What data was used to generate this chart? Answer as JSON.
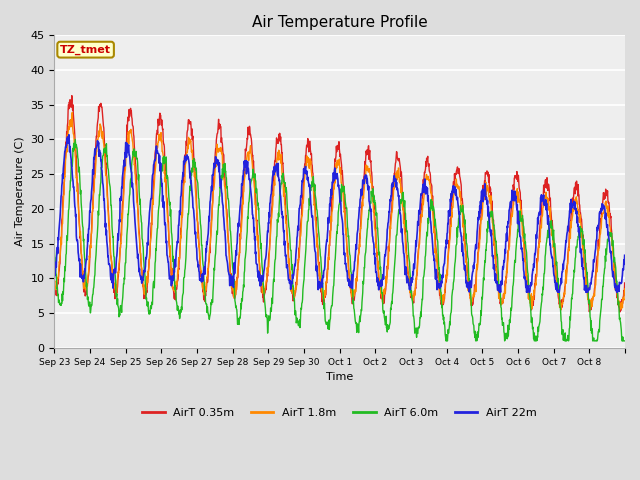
{
  "title": "Air Temperature Profile",
  "xlabel": "Time",
  "ylabel": "Air Temperature (C)",
  "annotation_text": "TZ_tmet",
  "annotation_bg": "#ffffcc",
  "annotation_border": "#aa8800",
  "annotation_fg": "#cc0000",
  "ylim": [
    0,
    45
  ],
  "colors": {
    "AirT 0.35m": "#dd2222",
    "AirT 1.8m": "#ff8800",
    "AirT 6.0m": "#22bb22",
    "AirT 22m": "#2222dd"
  },
  "bg_color": "#dddddd",
  "plot_bg": "#eeeeee",
  "grid_color": "#ffffff",
  "tick_labels": [
    "Sep 23",
    "Sep 24",
    "Sep 25",
    "Sep 26",
    "Sep 27",
    "Sep 28",
    "Sep 29",
    "Sep 30",
    "Oct 1",
    "Oct 2",
    "Oct 3",
    "Oct 4",
    "Oct 5",
    "Oct 6",
    "Oct 7",
    "Oct 8"
  ],
  "n_days": 16,
  "legend_entries": [
    "AirT 0.35m",
    "AirT 1.8m",
    "AirT 6.0m",
    "AirT 22m"
  ]
}
